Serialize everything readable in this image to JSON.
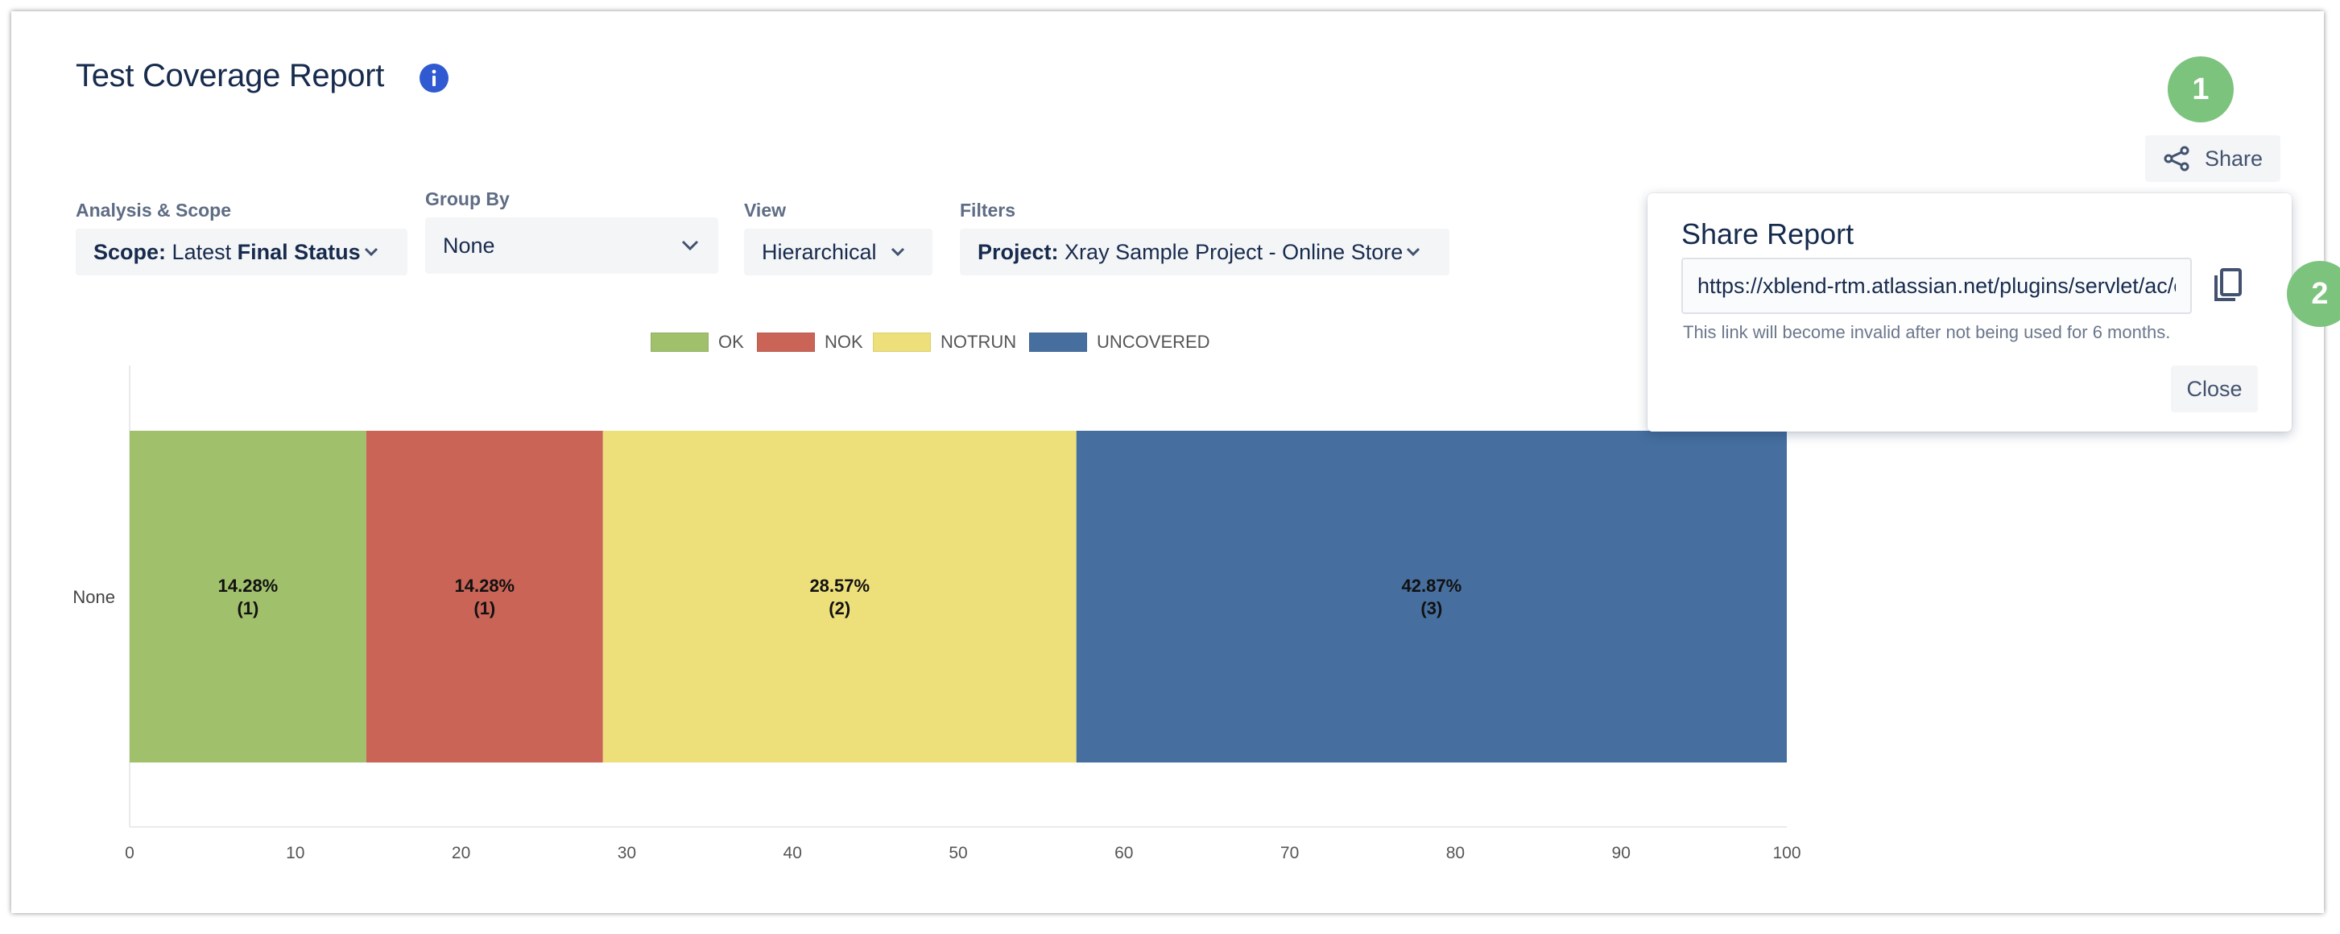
{
  "header": {
    "title": "Test Coverage Report"
  },
  "filters": {
    "analysis_scope": {
      "label": "Analysis & Scope",
      "prefix": "Scope:",
      "value_plain": "Latest",
      "value_bold": "Final Status"
    },
    "group_by": {
      "label": "Group By",
      "value": "None"
    },
    "view": {
      "label": "View",
      "value": "Hierarchical"
    },
    "filters": {
      "label": "Filters",
      "prefix": "Project:",
      "value": "Xray Sample Project - Online Store"
    }
  },
  "share": {
    "button_label": "Share"
  },
  "badges": {
    "one": "1",
    "two": "2"
  },
  "popup": {
    "title": "Share Report",
    "url": "https://xblend-rtm.atlassian.net/plugins/servlet/ac/c",
    "hint": "This link will become invalid after not being used for 6 months.",
    "close_label": "Close"
  },
  "colors": {
    "ok": "#a0c06c",
    "nok": "#c96457",
    "notrun": "#ede07b",
    "uncovered": "#466f9f",
    "accent": "#2f5ad1",
    "badge": "#7cc37e"
  },
  "chart_data": {
    "type": "bar",
    "orientation": "horizontal",
    "stacked": true,
    "categories": [
      "None"
    ],
    "series": [
      {
        "name": "OK",
        "values": [
          14.28
        ],
        "count": [
          1
        ],
        "color": "#a0c06c"
      },
      {
        "name": "NOK",
        "values": [
          14.28
        ],
        "count": [
          1
        ],
        "color": "#c96457"
      },
      {
        "name": "NOTRUN",
        "values": [
          28.57
        ],
        "count": [
          2
        ],
        "color": "#ede07b"
      },
      {
        "name": "UNCOVERED",
        "values": [
          42.87
        ],
        "count": [
          3
        ],
        "color": "#466f9f"
      }
    ],
    "xticks": [
      0,
      10,
      20,
      30,
      40,
      50,
      60,
      70,
      80,
      90,
      100
    ],
    "xlim": [
      0,
      100
    ],
    "legend_position": "top",
    "grid": false,
    "title": "",
    "xlabel": "",
    "ylabel": ""
  }
}
